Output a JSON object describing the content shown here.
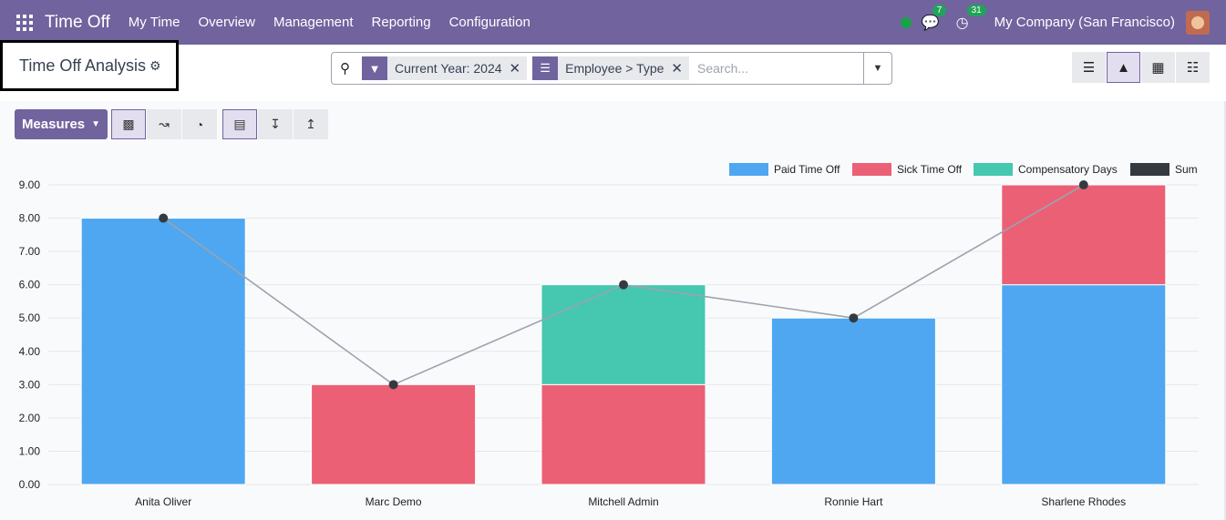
{
  "nav": {
    "app_title": "Time Off",
    "menu": [
      "My Time",
      "Overview",
      "Management",
      "Reporting",
      "Configuration"
    ],
    "messages_count": "7",
    "activities_count": "31",
    "company": "My Company (San Francisco)"
  },
  "control": {
    "page_title": "Time Off Analysis",
    "facets": [
      {
        "label": "Current Year: 2024",
        "icon": "filter-icon"
      },
      {
        "label": "Employee > Type",
        "icon": "group-by-icon"
      }
    ],
    "search_placeholder": "Search...",
    "views": [
      "list-view-icon",
      "graph-view-icon",
      "pivot-view-icon",
      "calendar-view-icon"
    ]
  },
  "toolbar": {
    "measures_label": "Measures",
    "chart_buttons": [
      "bar-chart-icon",
      "line-chart-icon",
      "pie-chart-icon"
    ],
    "option_buttons": [
      "stacked-icon",
      "sort-descending-icon",
      "sort-ascending-icon"
    ]
  },
  "chart_data": {
    "type": "bar",
    "stacked": true,
    "categories": [
      "Anita Oliver",
      "Marc Demo",
      "Mitchell Admin",
      "Ronnie Hart",
      "Sharlene Rhodes"
    ],
    "series": [
      {
        "name": "Paid Time Off",
        "color": "#4ea7f0",
        "values": [
          8,
          0,
          0,
          5,
          6
        ]
      },
      {
        "name": "Sick Time Off",
        "color": "#eb6075",
        "values": [
          0,
          3,
          3,
          0,
          3
        ]
      },
      {
        "name": "Compensatory Days",
        "color": "#45c7b0",
        "values": [
          0,
          0,
          3,
          0,
          0
        ]
      }
    ],
    "line_series": {
      "name": "Sum",
      "color": "#343a40",
      "values": [
        8,
        3,
        6,
        5,
        9
      ]
    },
    "ylim": [
      0,
      9
    ],
    "yticks": [
      "0.00",
      "1.00",
      "2.00",
      "3.00",
      "4.00",
      "5.00",
      "6.00",
      "7.00",
      "8.00",
      "9.00"
    ],
    "legend_position": "top-right",
    "grid": true
  }
}
